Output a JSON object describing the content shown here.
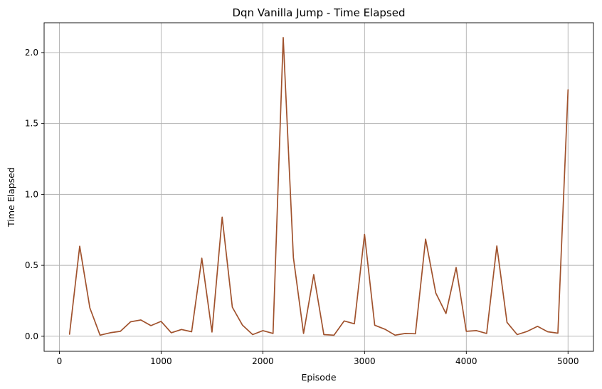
{
  "chart_data": {
    "type": "line",
    "title": "Dqn Vanilla Jump - Time Elapsed",
    "xlabel": "Episode",
    "ylabel": "Time Elapsed",
    "xlim": [
      -150,
      5250
    ],
    "ylim": [
      -0.106,
      2.21
    ],
    "xticks": [
      0,
      1000,
      2000,
      3000,
      4000,
      5000
    ],
    "yticks": [
      0.0,
      0.5,
      1.0,
      1.5,
      2.0
    ],
    "xtick_labels": [
      "0",
      "1000",
      "2000",
      "3000",
      "4000",
      "5000"
    ],
    "ytick_labels": [
      "0.0",
      "0.5",
      "1.0",
      "1.5",
      "2.0"
    ],
    "grid": true,
    "series": [
      {
        "color": "#a0522d",
        "x": [
          100,
          200,
          300,
          400,
          500,
          600,
          700,
          800,
          900,
          1000,
          1100,
          1200,
          1300,
          1400,
          1500,
          1600,
          1700,
          1800,
          1900,
          2000,
          2100,
          2200,
          2300,
          2400,
          2500,
          2600,
          2700,
          2800,
          2900,
          3000,
          3100,
          3200,
          3300,
          3400,
          3500,
          3600,
          3700,
          3800,
          3900,
          4000,
          4100,
          4200,
          4300,
          4400,
          4500,
          4600,
          4700,
          4800,
          4900,
          5000
        ],
        "y": [
          0.015,
          0.635,
          0.2,
          0.008,
          0.025,
          0.035,
          0.102,
          0.115,
          0.075,
          0.105,
          0.025,
          0.048,
          0.032,
          0.55,
          0.03,
          0.84,
          0.205,
          0.078,
          0.012,
          0.04,
          0.02,
          2.105,
          0.555,
          0.02,
          0.435,
          0.012,
          0.008,
          0.108,
          0.088,
          0.718,
          0.078,
          0.05,
          0.008,
          0.02,
          0.018,
          0.685,
          0.305,
          0.16,
          0.485,
          0.035,
          0.04,
          0.02,
          0.637,
          0.098,
          0.012,
          0.035,
          0.07,
          0.032,
          0.022,
          1.738
        ]
      }
    ]
  }
}
